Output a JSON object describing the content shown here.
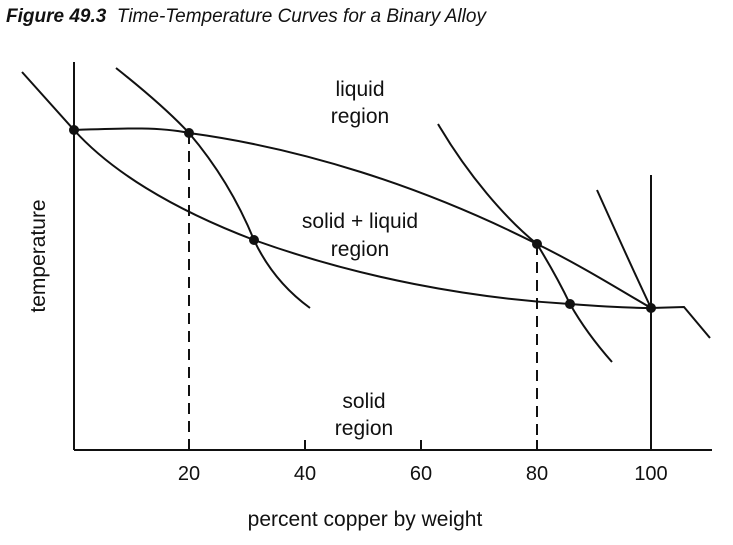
{
  "figure": {
    "number": "Figure 49.3",
    "title": "Time-Temperature Curves for a Binary Alloy"
  },
  "axes": {
    "xlabel": "percent copper by weight",
    "ylabel": "temperature",
    "x_ticks": [
      "20",
      "40",
      "60",
      "80",
      "100"
    ]
  },
  "regions": {
    "liquid": [
      "liquid",
      "region"
    ],
    "mixed": [
      "solid + liquid",
      "region"
    ],
    "solid": [
      "solid",
      "region"
    ]
  }
}
